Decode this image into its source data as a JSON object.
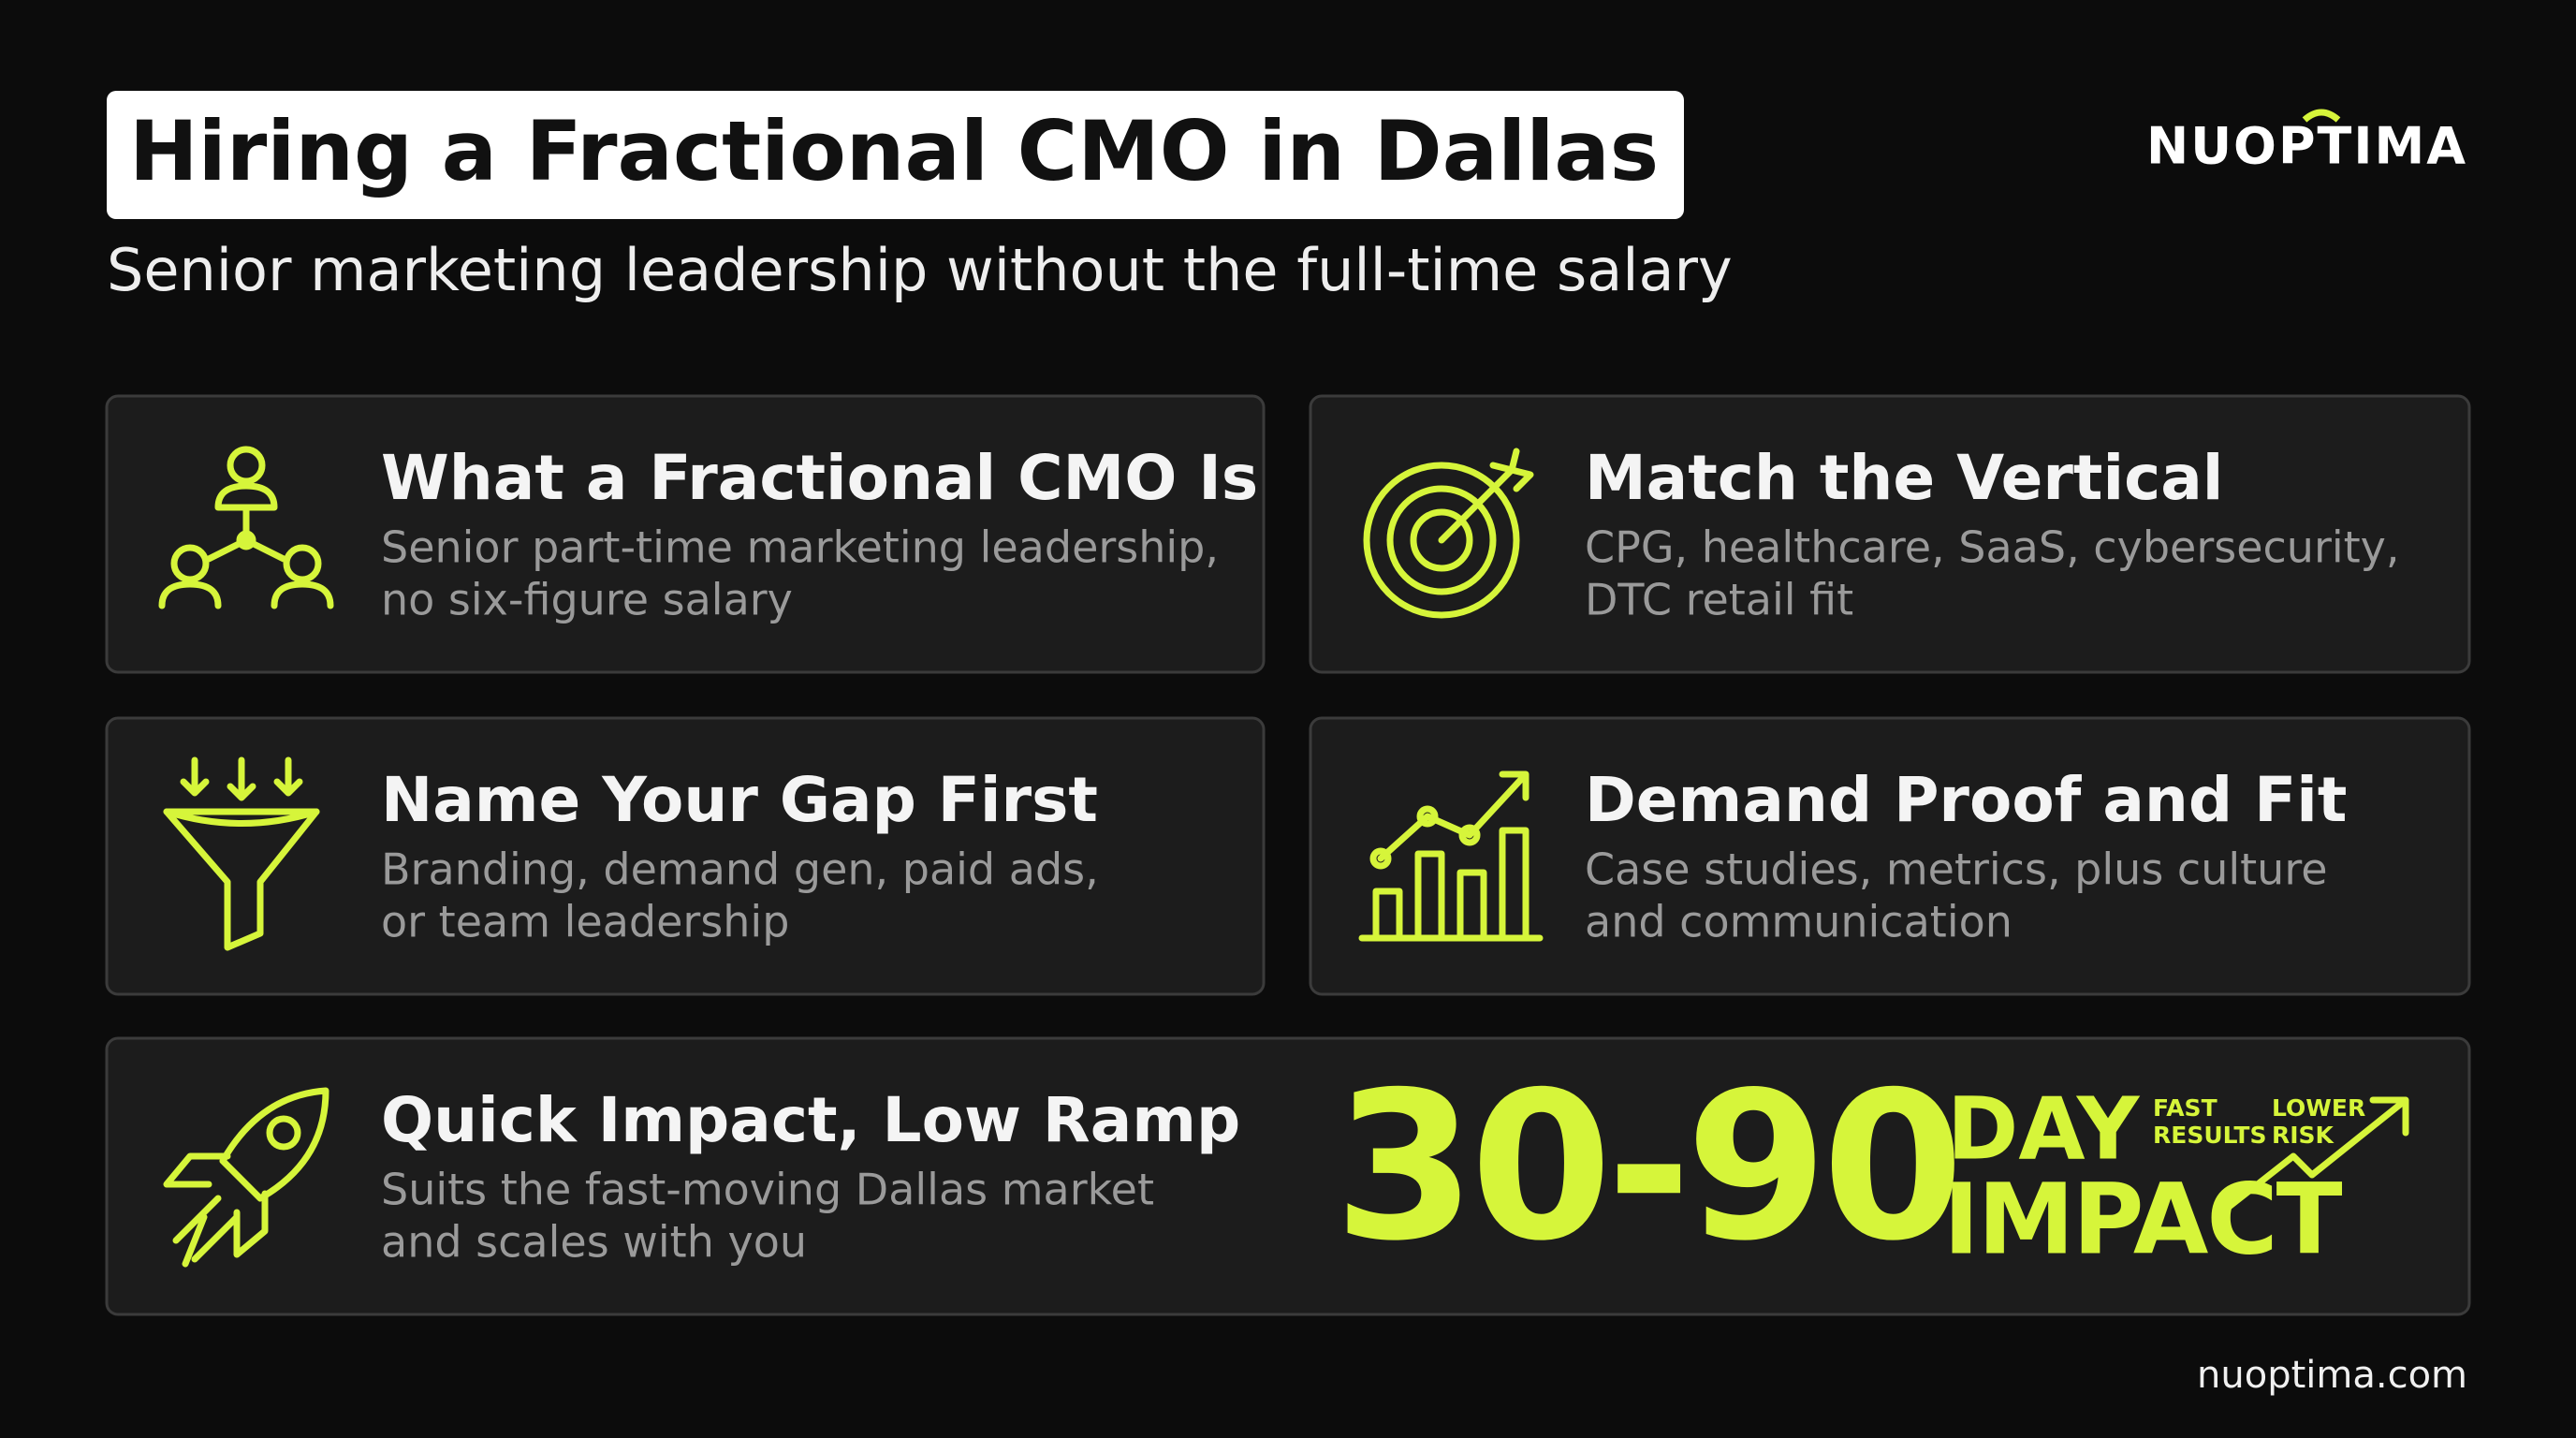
{
  "header": {
    "title": "Hiring a Fractional CMO in Dallas",
    "subtitle": "Senior marketing leadership without the full-time salary",
    "logo": "NUOPTIMA"
  },
  "cards": [
    {
      "title": "What a Fractional CMO Is",
      "lines": [
        "Senior part-time marketing leadership,",
        "no six-figure salary"
      ]
    },
    {
      "title": "Match the Vertical",
      "lines": [
        "CPG, healthcare, SaaS, cybersecurity,",
        "DTC retail fit"
      ]
    },
    {
      "title": "Name Your Gap First",
      "lines": [
        "Branding, demand gen, paid ads,",
        "or team leadership"
      ]
    },
    {
      "title": "Demand Proof and Fit",
      "lines": [
        "Case studies, metrics, plus culture",
        "and communication"
      ]
    },
    {
      "title": "Quick Impact, Low Ramp",
      "lines": [
        "Suits the fast-moving Dallas market",
        "and scales with you"
      ]
    }
  ],
  "impact": {
    "number": "30-90",
    "unit": "DAY",
    "word": "IMPACT",
    "tag1": [
      "FAST",
      "RESULTS"
    ],
    "tag2": [
      "LOWER",
      "RISK"
    ]
  },
  "footer": "nuoptima.com"
}
